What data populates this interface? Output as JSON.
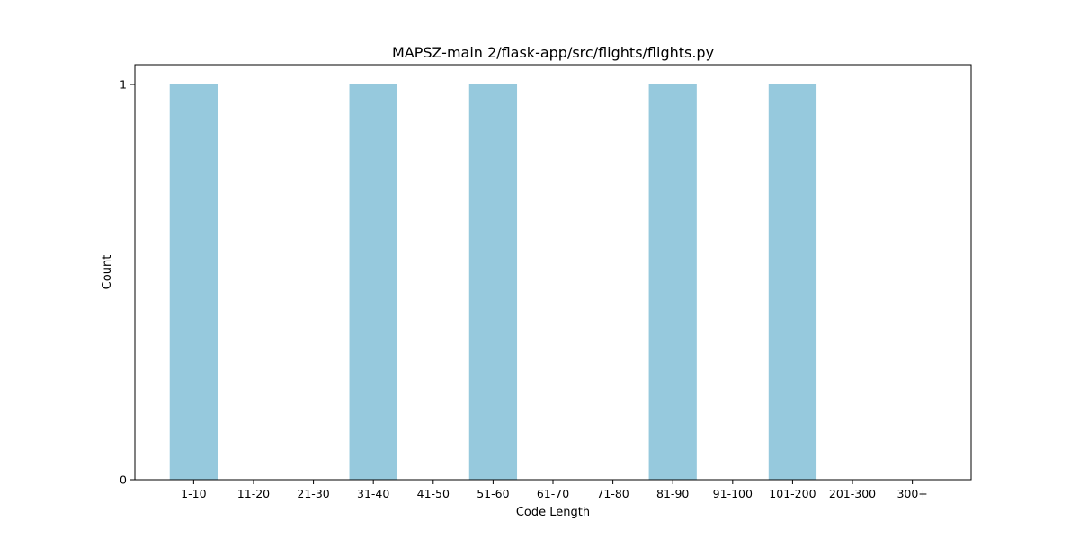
{
  "chart_data": {
    "type": "bar",
    "title": "MAPSZ-main 2/flask-app/src/flights/flights.py",
    "xlabel": "Code Length",
    "ylabel": "Count",
    "categories": [
      "1-10",
      "11-20",
      "21-30",
      "31-40",
      "41-50",
      "51-60",
      "61-70",
      "71-80",
      "81-90",
      "91-100",
      "101-200",
      "201-300",
      "300+"
    ],
    "values": [
      1,
      0,
      0,
      1,
      0,
      1,
      0,
      0,
      1,
      0,
      1,
      0,
      0
    ],
    "ylim": [
      0,
      1.05
    ],
    "yticks": [
      0,
      1
    ],
    "bar_color": "#96c9dd",
    "grid": false,
    "legend": "none"
  }
}
